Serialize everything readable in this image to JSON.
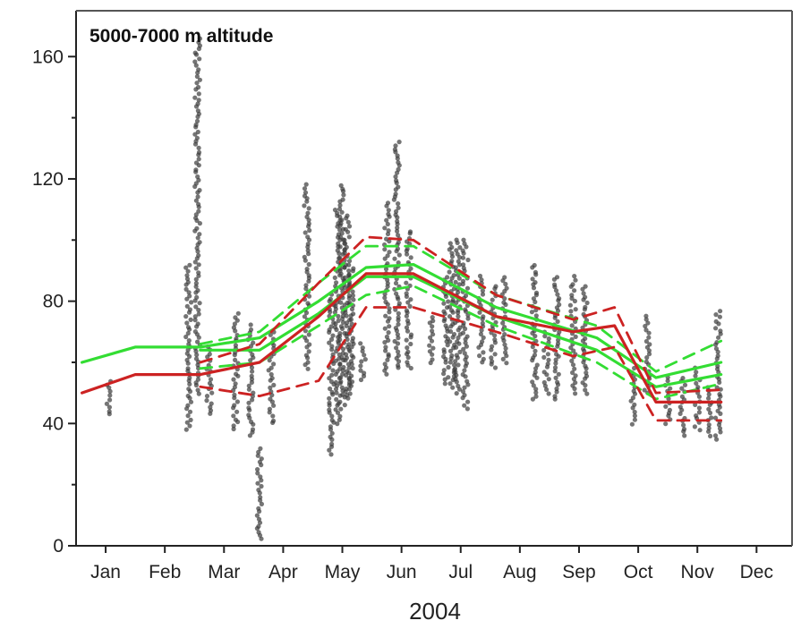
{
  "chart_data": {
    "type": "line",
    "title": "5000-7000 m altitude",
    "xlabel": "2004",
    "ylabel": "",
    "ylim": [
      0,
      175
    ],
    "xlim": [
      0.5,
      12.6
    ],
    "yticks": [
      0,
      40,
      80,
      120,
      160
    ],
    "months": [
      "Jan",
      "Feb",
      "Mar",
      "Apr",
      "May",
      "Jun",
      "Jul",
      "Aug",
      "Sep",
      "Oct",
      "Nov",
      "Dec"
    ],
    "grid": false,
    "legend": "none",
    "colors": {
      "scatter": "#3a3a3a",
      "green": "#33dd33",
      "red": "#cc2222",
      "frame": "#555555"
    },
    "scatter_columns": [
      {
        "x": 1.05,
        "min": 43,
        "max": 54
      },
      {
        "x": 2.4,
        "min": 38,
        "max": 92
      },
      {
        "x": 2.55,
        "min": 50,
        "max": 166
      },
      {
        "x": 2.75,
        "min": 43,
        "max": 65
      },
      {
        "x": 3.2,
        "min": 38,
        "max": 76
      },
      {
        "x": 3.45,
        "min": 36,
        "max": 72
      },
      {
        "x": 3.6,
        "min": 2,
        "max": 32
      },
      {
        "x": 3.8,
        "min": 40,
        "max": 70
      },
      {
        "x": 4.4,
        "min": 58,
        "max": 118
      },
      {
        "x": 4.82,
        "min": 30,
        "max": 82
      },
      {
        "x": 4.92,
        "min": 40,
        "max": 110
      },
      {
        "x": 5.0,
        "min": 45,
        "max": 118
      },
      {
        "x": 5.08,
        "min": 48,
        "max": 108
      },
      {
        "x": 5.15,
        "min": 50,
        "max": 92
      },
      {
        "x": 5.35,
        "min": 54,
        "max": 66
      },
      {
        "x": 5.75,
        "min": 56,
        "max": 112
      },
      {
        "x": 5.92,
        "min": 58,
        "max": 132
      },
      {
        "x": 6.12,
        "min": 58,
        "max": 103
      },
      {
        "x": 6.5,
        "min": 60,
        "max": 75
      },
      {
        "x": 6.75,
        "min": 53,
        "max": 88
      },
      {
        "x": 6.85,
        "min": 52,
        "max": 99
      },
      {
        "x": 6.95,
        "min": 50,
        "max": 100
      },
      {
        "x": 7.08,
        "min": 45,
        "max": 100
      },
      {
        "x": 7.35,
        "min": 60,
        "max": 88
      },
      {
        "x": 7.55,
        "min": 58,
        "max": 85
      },
      {
        "x": 7.75,
        "min": 60,
        "max": 88
      },
      {
        "x": 8.25,
        "min": 48,
        "max": 92
      },
      {
        "x": 8.45,
        "min": 50,
        "max": 70
      },
      {
        "x": 8.62,
        "min": 48,
        "max": 88
      },
      {
        "x": 8.9,
        "min": 50,
        "max": 88
      },
      {
        "x": 9.1,
        "min": 50,
        "max": 85
      },
      {
        "x": 9.9,
        "min": 40,
        "max": 58
      },
      {
        "x": 10.15,
        "min": 50,
        "max": 75
      },
      {
        "x": 10.5,
        "min": 40,
        "max": 55
      },
      {
        "x": 10.75,
        "min": 36,
        "max": 55
      },
      {
        "x": 11.0,
        "min": 38,
        "max": 58
      },
      {
        "x": 11.2,
        "min": 36,
        "max": 52
      },
      {
        "x": 11.35,
        "min": 35,
        "max": 77
      }
    ],
    "series": [
      {
        "color": "#33dd33",
        "style": "solid",
        "points": [
          [
            0.6,
            60
          ],
          [
            1.5,
            65
          ],
          [
            2.6,
            65
          ],
          [
            3.6,
            68
          ],
          [
            4.6,
            80
          ],
          [
            5.4,
            91
          ],
          [
            6.2,
            92
          ],
          [
            7.6,
            78
          ],
          [
            9.3,
            68
          ],
          [
            10.3,
            55
          ],
          [
            11.4,
            60
          ]
        ]
      },
      {
        "color": "#33dd33",
        "style": "solid",
        "points": [
          [
            2.6,
            64
          ],
          [
            3.6,
            64
          ],
          [
            4.6,
            76
          ],
          [
            5.4,
            88
          ],
          [
            6.2,
            88
          ],
          [
            7.6,
            75
          ],
          [
            9.3,
            64
          ],
          [
            10.3,
            52
          ],
          [
            11.4,
            56
          ]
        ]
      },
      {
        "color": "#33dd33",
        "style": "dashed",
        "points": [
          [
            2.6,
            66
          ],
          [
            3.6,
            70
          ],
          [
            4.6,
            86
          ],
          [
            5.4,
            98
          ],
          [
            6.2,
            98
          ],
          [
            7.6,
            82
          ],
          [
            9.3,
            72
          ],
          [
            10.3,
            57
          ],
          [
            11.4,
            67
          ]
        ]
      },
      {
        "color": "#33dd33",
        "style": "dashed",
        "points": [
          [
            2.6,
            58
          ],
          [
            3.6,
            60
          ],
          [
            4.6,
            72
          ],
          [
            5.4,
            82
          ],
          [
            6.2,
            85
          ],
          [
            7.6,
            72
          ],
          [
            9.3,
            60
          ],
          [
            10.3,
            48
          ],
          [
            11.4,
            53
          ]
        ]
      },
      {
        "color": "#cc2222",
        "style": "solid",
        "points": [
          [
            0.6,
            50
          ],
          [
            1.5,
            56
          ],
          [
            2.6,
            56
          ],
          [
            3.6,
            60
          ],
          [
            4.6,
            75
          ],
          [
            5.4,
            89
          ],
          [
            6.2,
            89
          ],
          [
            7.6,
            75
          ],
          [
            8.9,
            70
          ],
          [
            9.6,
            72
          ],
          [
            10.3,
            47
          ],
          [
            11.4,
            47
          ]
        ]
      },
      {
        "color": "#cc2222",
        "style": "dashed",
        "points": [
          [
            2.6,
            60
          ],
          [
            3.6,
            66
          ],
          [
            4.6,
            86
          ],
          [
            5.4,
            101
          ],
          [
            6.2,
            100
          ],
          [
            7.6,
            82
          ],
          [
            8.9,
            74
          ],
          [
            9.6,
            78
          ],
          [
            10.3,
            50
          ],
          [
            11.4,
            51
          ]
        ]
      },
      {
        "color": "#cc2222",
        "style": "dashed",
        "points": [
          [
            2.6,
            52
          ],
          [
            3.6,
            49
          ],
          [
            4.6,
            54
          ],
          [
            5.4,
            78
          ],
          [
            6.2,
            78
          ],
          [
            7.6,
            70
          ],
          [
            8.9,
            62
          ],
          [
            9.6,
            65
          ],
          [
            10.3,
            41
          ],
          [
            11.4,
            41
          ]
        ]
      }
    ]
  }
}
